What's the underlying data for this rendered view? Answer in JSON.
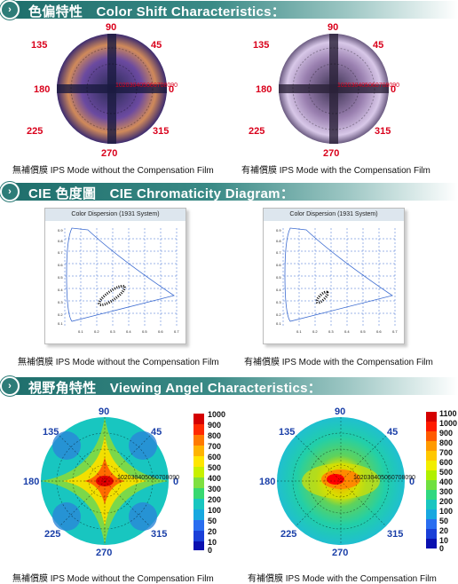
{
  "sections": {
    "color_shift": {
      "badge_icon": "dots-arrow-icon",
      "title": "色偏特性　Color Shift Characteristics："
    },
    "cie": {
      "badge_icon": "dots-arrow-icon",
      "title": "CIE 色度圖　CIE Chromaticity Diagram："
    },
    "viewing": {
      "badge_icon": "dots-arrow-icon",
      "title": "視野角特性　Viewing Angel Characteristics："
    }
  },
  "captions": {
    "without": "無補償膜 IPS Mode without the Compensation Film",
    "with": "有補償膜 IPS Mode with the Compensation Film"
  },
  "polar": {
    "angles": [
      "90",
      "45",
      "0",
      "315",
      "270",
      "225",
      "180",
      "135"
    ],
    "radial_ticks": "102030405060708090"
  },
  "cie_chart": {
    "title": "Color Dispersion (1931 System)",
    "y_ticks": [
      "0.9",
      "0.8",
      "0.7",
      "0.6",
      "0.5",
      "0.4",
      "0.3",
      "0.2",
      "0.1"
    ],
    "x_ticks": [
      "0.1",
      "0.2",
      "0.3",
      "0.4",
      "0.5",
      "0.6",
      "0.7"
    ]
  },
  "legend_left": [
    "1000",
    "900",
    "800",
    "700",
    "600",
    "500",
    "400",
    "300",
    "200",
    "100",
    "50",
    "20",
    "10",
    "0"
  ],
  "legend_right": [
    "1100",
    "1000",
    "900",
    "800",
    "700",
    "600",
    "500",
    "400",
    "300",
    "200",
    "100",
    "50",
    "20",
    "10",
    "0"
  ],
  "colors": {
    "banner": "#2d7c78",
    "angle_red": "#d9001b",
    "angle_blue": "#1a3fa8"
  }
}
